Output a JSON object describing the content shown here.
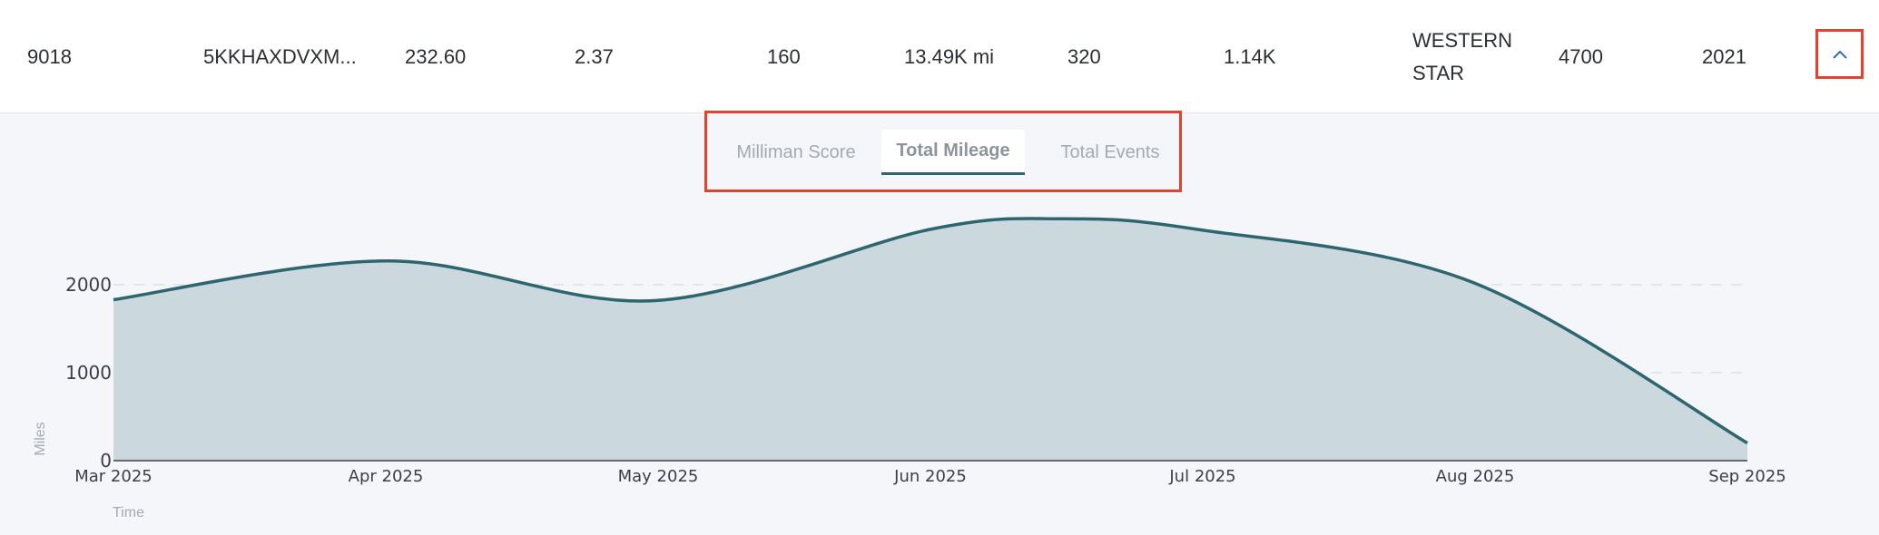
{
  "row": {
    "id": "9018",
    "vin": "5KKHAXDVXM...",
    "value_a": "232.60",
    "value_b": "2.37",
    "value_c": "160",
    "mileage": "13.49K mi",
    "value_d": "320",
    "value_e": "1.14K",
    "make_line1": "WESTERN",
    "make_line2": "STAR",
    "model": "4700",
    "year": "2021",
    "expand_icon": "chevron-up-icon"
  },
  "tabs": [
    {
      "label": "Milliman Score",
      "active": false
    },
    {
      "label": "Total Mileage",
      "active": true
    },
    {
      "label": "Total Events",
      "active": false
    }
  ],
  "colors": {
    "line": "#2d6670",
    "area": "#cbd9df",
    "highlight": "#e2432c",
    "grid": "#dcdfe4"
  },
  "chart_data": {
    "type": "area",
    "x": [
      "2025-03-01",
      "2025-04-01",
      "2025-05-01",
      "2025-06-01",
      "2025-06-16",
      "2025-07-01",
      "2025-08-01",
      "2025-09-01"
    ],
    "values": [
      1830,
      2270,
      1820,
      2630,
      2750,
      2630,
      2030,
      200
    ],
    "xticks": [
      "Mar 2025",
      "Apr 2025",
      "May 2025",
      "Jun 2025",
      "Jul 2025",
      "Aug 2025",
      "Sep 2025"
    ],
    "yticks": [
      "0",
      "1000",
      "2000"
    ],
    "xlabel": "Time",
    "ylabel": "Miles",
    "ylim": [
      0,
      3000
    ],
    "grid": true
  }
}
